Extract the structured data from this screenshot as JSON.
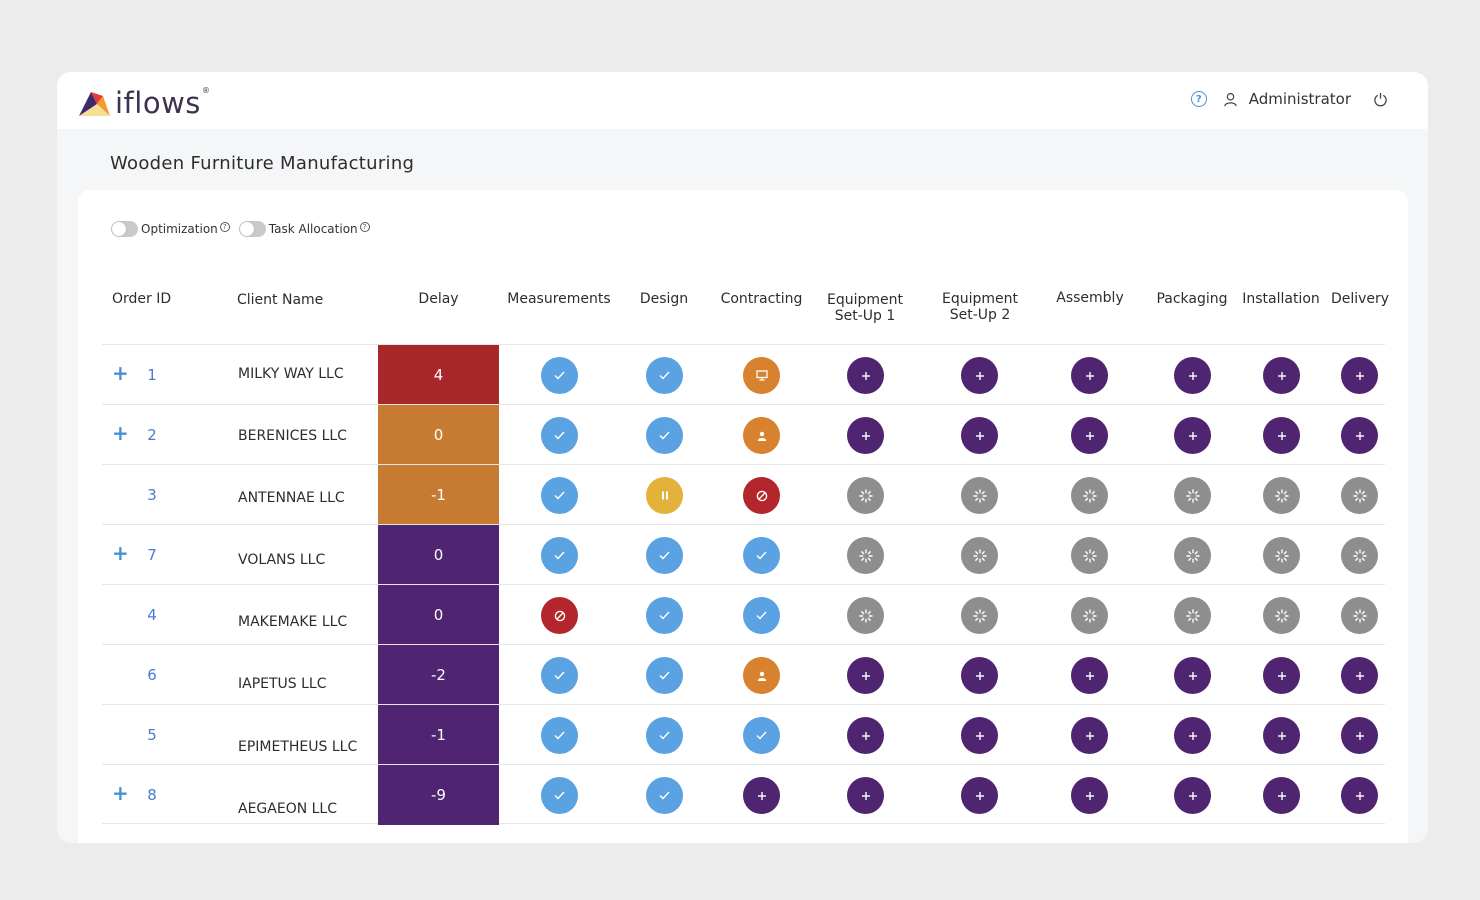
{
  "app": {
    "brand": "iflows",
    "brand_mark": "®"
  },
  "header": {
    "user_label": "Administrator"
  },
  "page": {
    "title": "Wooden Furniture Manufacturing"
  },
  "toggles": [
    {
      "label": "Optimization",
      "on": false
    },
    {
      "label": "Task Allocation",
      "on": false
    }
  ],
  "columns": [
    "Order ID",
    "Client Name",
    "Delay",
    "Measurements",
    "Design",
    "Contracting",
    "Equipment Set-Up 1",
    "Equipment Set-Up 2",
    "Assembly",
    "Packaging",
    "Installation",
    "Delivery"
  ],
  "status_colors": {
    "done": "#5aa2e1",
    "todo": "#4f2470",
    "waiting": "#8e8e8e",
    "blocked": "#b3262b",
    "in-progress": "#d8812f",
    "paused": "#e2b23a"
  },
  "delay_colors": {
    "red": "#a8272b",
    "orange": "#c77a32",
    "purple": "#4f2470"
  },
  "orders": [
    {
      "expand": true,
      "id": "1",
      "client": "MILKY WAY LLC",
      "delay": "4",
      "delay_color": "red",
      "statuses": [
        "done",
        "done",
        "in-progress-desktop",
        "todo",
        "todo",
        "todo",
        "todo",
        "todo",
        "todo"
      ]
    },
    {
      "expand": true,
      "id": "2",
      "client": "BERENICES LLC",
      "delay": "0",
      "delay_color": "orange",
      "statuses": [
        "done",
        "done",
        "in-progress-user",
        "todo",
        "todo",
        "todo",
        "todo",
        "todo",
        "todo"
      ]
    },
    {
      "expand": false,
      "id": "3",
      "client": "ANTENNAE LLC",
      "delay": "-1",
      "delay_color": "orange",
      "statuses": [
        "done",
        "paused",
        "blocked",
        "waiting",
        "waiting",
        "waiting",
        "waiting",
        "waiting",
        "waiting"
      ]
    },
    {
      "expand": true,
      "id": "7",
      "client": "VOLANS LLC",
      "delay": "0",
      "delay_color": "purple",
      "statuses": [
        "done",
        "done",
        "done",
        "waiting",
        "waiting",
        "waiting",
        "waiting",
        "waiting",
        "waiting"
      ]
    },
    {
      "expand": false,
      "id": "4",
      "client": "MAKEMAKE LLC",
      "delay": "0",
      "delay_color": "purple",
      "statuses": [
        "blocked",
        "done",
        "done",
        "waiting",
        "waiting",
        "waiting",
        "waiting",
        "waiting",
        "waiting"
      ]
    },
    {
      "expand": false,
      "id": "6",
      "client": "IAPETUS LLC",
      "delay": "-2",
      "delay_color": "purple",
      "statuses": [
        "done",
        "done",
        "in-progress-user",
        "todo",
        "todo",
        "todo",
        "todo",
        "todo",
        "todo"
      ]
    },
    {
      "expand": false,
      "id": "5",
      "client": "EPIMETHEUS LLC",
      "delay": "-1",
      "delay_color": "purple",
      "statuses": [
        "done",
        "done",
        "done",
        "todo",
        "todo",
        "todo",
        "todo",
        "todo",
        "todo"
      ]
    },
    {
      "expand": true,
      "id": "8",
      "client": "AEGAEON LLC",
      "delay": "-9",
      "delay_color": "purple",
      "statuses": [
        "done",
        "done",
        "todo",
        "todo",
        "todo",
        "todo",
        "todo",
        "todo",
        "todo"
      ]
    }
  ]
}
